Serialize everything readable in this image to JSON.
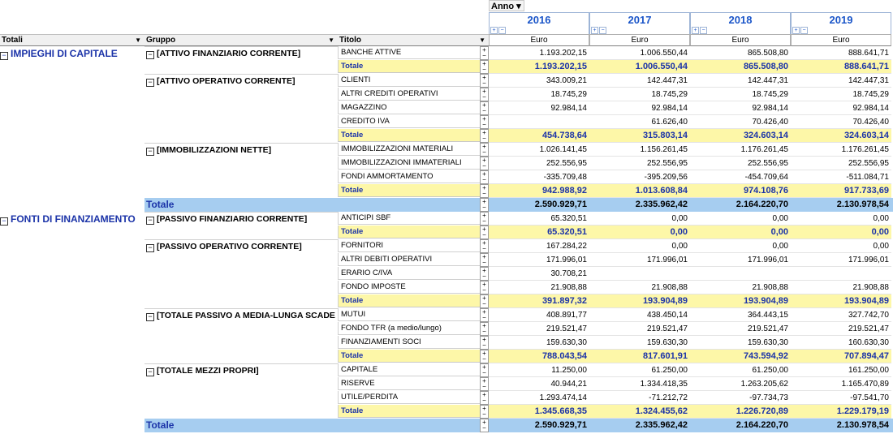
{
  "anno_label": "Anno",
  "years": [
    "2016",
    "2017",
    "2018",
    "2019"
  ],
  "unit": "Euro",
  "headers": {
    "totali": "Totali",
    "gruppo": "Gruppo",
    "titolo": "Titolo"
  },
  "sections": [
    {
      "label": "IMPIEGHI DI CAPITALE",
      "groups": [
        {
          "label": "[ATTIVO FINANZIARIO CORRENTE]",
          "rows": [
            {
              "t": "BANCHE ATTIVE",
              "v": [
                "1.193.202,15",
                "1.006.550,44",
                "865.508,80",
                "888.641,71"
              ]
            },
            {
              "t": "Totale",
              "tot": true,
              "v": [
                "1.193.202,15",
                "1.006.550,44",
                "865.508,80",
                "888.641,71"
              ]
            }
          ]
        },
        {
          "label": "[ATTIVO OPERATIVO CORRENTE]",
          "rows": [
            {
              "t": "CLIENTI",
              "v": [
                "343.009,21",
                "142.447,31",
                "142.447,31",
                "142.447,31"
              ]
            },
            {
              "t": "ALTRI CREDITI OPERATIVI",
              "v": [
                "18.745,29",
                "18.745,29",
                "18.745,29",
                "18.745,29"
              ]
            },
            {
              "t": "MAGAZZINO",
              "v": [
                "92.984,14",
                "92.984,14",
                "92.984,14",
                "92.984,14"
              ]
            },
            {
              "t": "CREDITO IVA",
              "v": [
                "",
                "61.626,40",
                "70.426,40",
                "70.426,40"
              ]
            },
            {
              "t": "Totale",
              "tot": true,
              "v": [
                "454.738,64",
                "315.803,14",
                "324.603,14",
                "324.603,14"
              ]
            }
          ]
        },
        {
          "label": "[IMMOBILIZZAZIONI NETTE]",
          "rows": [
            {
              "t": "IMMOBILIZZAZIONI MATERIALI",
              "v": [
                "1.026.141,45",
                "1.156.261,45",
                "1.176.261,45",
                "1.176.261,45"
              ]
            },
            {
              "t": "IMMOBILIZZAZIONI IMMATERIALI",
              "v": [
                "252.556,95",
                "252.556,95",
                "252.556,95",
                "252.556,95"
              ]
            },
            {
              "t": "FONDI AMMORTAMENTO",
              "v": [
                "-335.709,48",
                "-395.209,56",
                "-454.709,64",
                "-511.084,71"
              ]
            },
            {
              "t": "Totale",
              "tot": true,
              "v": [
                "942.988,92",
                "1.013.608,84",
                "974.108,76",
                "917.733,69"
              ]
            }
          ]
        }
      ],
      "total": {
        "label": "Totale",
        "v": [
          "2.590.929,71",
          "2.335.962,42",
          "2.164.220,70",
          "2.130.978,54"
        ]
      }
    },
    {
      "label": "FONTI DI FINANZIAMENTO",
      "groups": [
        {
          "label": "[PASSIVO FINANZIARIO CORRENTE]",
          "rows": [
            {
              "t": "ANTICIPI SBF",
              "v": [
                "65.320,51",
                "0,00",
                "0,00",
                "0,00"
              ]
            },
            {
              "t": "Totale",
              "tot": true,
              "v": [
                "65.320,51",
                "0,00",
                "0,00",
                "0,00"
              ]
            }
          ]
        },
        {
          "label": "[PASSIVO OPERATIVO CORRENTE]",
          "rows": [
            {
              "t": "FORNITORI",
              "v": [
                "167.284,22",
                "0,00",
                "0,00",
                "0,00"
              ]
            },
            {
              "t": "ALTRI DEBITI OPERATIVI",
              "v": [
                "171.996,01",
                "171.996,01",
                "171.996,01",
                "171.996,01"
              ]
            },
            {
              "t": "ERARIO C/IVA",
              "v": [
                "30.708,21",
                "",
                "",
                ""
              ]
            },
            {
              "t": "FONDO IMPOSTE",
              "v": [
                "21.908,88",
                "21.908,88",
                "21.908,88",
                "21.908,88"
              ]
            },
            {
              "t": "Totale",
              "tot": true,
              "v": [
                "391.897,32",
                "193.904,89",
                "193.904,89",
                "193.904,89"
              ]
            }
          ]
        },
        {
          "label": "[TOTALE PASSIVO A MEDIA-LUNGA SCADE",
          "rows": [
            {
              "t": "MUTUI",
              "v": [
                "408.891,77",
                "438.450,14",
                "364.443,15",
                "327.742,70"
              ]
            },
            {
              "t": "FONDO TFR (a medio/lungo)",
              "v": [
                "219.521,47",
                "219.521,47",
                "219.521,47",
                "219.521,47"
              ]
            },
            {
              "t": "FINANZIAMENTI SOCI",
              "v": [
                "159.630,30",
                "159.630,30",
                "159.630,30",
                "160.630,30"
              ]
            },
            {
              "t": "Totale",
              "tot": true,
              "v": [
                "788.043,54",
                "817.601,91",
                "743.594,92",
                "707.894,47"
              ]
            }
          ]
        },
        {
          "label": "[TOTALE MEZZI PROPRI]",
          "rows": [
            {
              "t": "CAPITALE",
              "v": [
                "11.250,00",
                "61.250,00",
                "61.250,00",
                "161.250,00"
              ]
            },
            {
              "t": "RISERVE",
              "v": [
                "40.944,21",
                "1.334.418,35",
                "1.263.205,62",
                "1.165.470,89"
              ]
            },
            {
              "t": "UTILE/PERDITA",
              "v": [
                "1.293.474,14",
                "-71.212,72",
                "-97.734,73",
                "-97.541,70"
              ]
            },
            {
              "t": "Totale",
              "tot": true,
              "v": [
                "1.345.668,35",
                "1.324.455,62",
                "1.226.720,89",
                "1.229.179,19"
              ]
            }
          ]
        }
      ],
      "total": {
        "label": "Totale",
        "v": [
          "2.590.929,71",
          "2.335.962,42",
          "2.164.220,70",
          "2.130.978,54"
        ]
      }
    }
  ]
}
